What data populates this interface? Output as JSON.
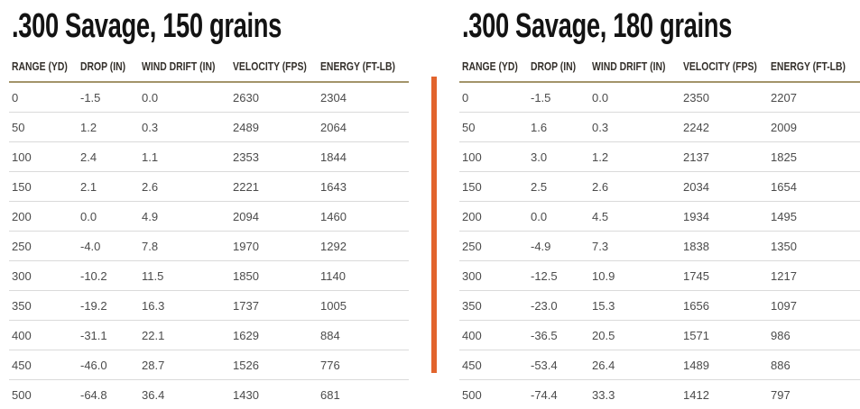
{
  "colors": {
    "accent_divider": "#e2642d",
    "header_rule": "#a39469",
    "title_text": "#131313",
    "header_text": "#34302b",
    "cell_text": "#4b4b4b",
    "row_separator": "#dadada"
  },
  "chart_data": [
    {
      "type": "table",
      "title": ".300 Savage, 150 grains",
      "columns": [
        "RANGE (YD)",
        "DROP (IN)",
        "WIND DRIFT (IN)",
        "VELOCITY (FPS)",
        "ENERGY (FT-LB)"
      ],
      "rows": [
        [
          "0",
          "-1.5",
          "0.0",
          "2630",
          "2304"
        ],
        [
          "50",
          "1.2",
          "0.3",
          "2489",
          "2064"
        ],
        [
          "100",
          "2.4",
          "1.1",
          "2353",
          "1844"
        ],
        [
          "150",
          "2.1",
          "2.6",
          "2221",
          "1643"
        ],
        [
          "200",
          "0.0",
          "4.9",
          "2094",
          "1460"
        ],
        [
          "250",
          "-4.0",
          "7.8",
          "1970",
          "1292"
        ],
        [
          "300",
          "-10.2",
          "11.5",
          "1850",
          "1140"
        ],
        [
          "350",
          "-19.2",
          "16.3",
          "1737",
          "1005"
        ],
        [
          "400",
          "-31.1",
          "22.1",
          "1629",
          "884"
        ],
        [
          "450",
          "-46.0",
          "28.7",
          "1526",
          "776"
        ],
        [
          "500",
          "-64.8",
          "36.4",
          "1430",
          "681"
        ]
      ]
    },
    {
      "type": "table",
      "title": ".300 Savage, 180 grains",
      "columns": [
        "RANGE (YD)",
        "DROP (IN)",
        "WIND DRIFT (IN)",
        "VELOCITY (FPS)",
        "ENERGY (FT-LB)"
      ],
      "rows": [
        [
          "0",
          "-1.5",
          "0.0",
          "2350",
          "2207"
        ],
        [
          "50",
          "1.6",
          "0.3",
          "2242",
          "2009"
        ],
        [
          "100",
          "3.0",
          "1.2",
          "2137",
          "1825"
        ],
        [
          "150",
          "2.5",
          "2.6",
          "2034",
          "1654"
        ],
        [
          "200",
          "0.0",
          "4.5",
          "1934",
          "1495"
        ],
        [
          "250",
          "-4.9",
          "7.3",
          "1838",
          "1350"
        ],
        [
          "300",
          "-12.5",
          "10.9",
          "1745",
          "1217"
        ],
        [
          "350",
          "-23.0",
          "15.3",
          "1656",
          "1097"
        ],
        [
          "400",
          "-36.5",
          "20.5",
          "1571",
          "986"
        ],
        [
          "450",
          "-53.4",
          "26.4",
          "1489",
          "886"
        ],
        [
          "500",
          "-74.4",
          "33.3",
          "1412",
          "797"
        ]
      ]
    }
  ]
}
